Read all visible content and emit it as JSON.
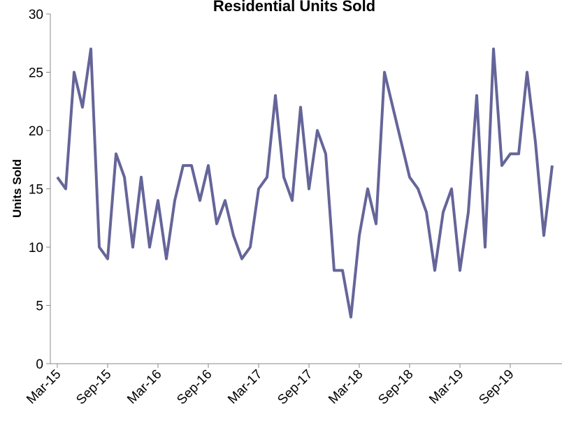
{
  "chart_data": {
    "type": "line",
    "title": "Residential Units Sold",
    "y_label": "Units Sold",
    "categories": [
      "Mar-15",
      null,
      null,
      null,
      null,
      null,
      "Sep-15",
      null,
      null,
      null,
      null,
      null,
      "Mar-16",
      null,
      null,
      null,
      null,
      null,
      "Sep-16",
      null,
      null,
      null,
      null,
      null,
      "Mar-17",
      null,
      null,
      null,
      null,
      null,
      "Sep-17",
      null,
      null,
      null,
      null,
      null,
      "Mar-18",
      null,
      null,
      null,
      null,
      null,
      "Sep-18",
      null,
      null,
      null,
      null,
      null,
      "Mar-19",
      null,
      null,
      null,
      null,
      null,
      "Sep-19",
      null,
      null,
      null,
      null,
      null
    ],
    "series": [
      {
        "name": "Units Sold",
        "color": "#65659a",
        "values": [
          16,
          15,
          25,
          22,
          27,
          10,
          9,
          18,
          16,
          10,
          16,
          10,
          14,
          9,
          14,
          17,
          17,
          14,
          17,
          12,
          14,
          11,
          9,
          10,
          15,
          16,
          23,
          16,
          14,
          22,
          15,
          20,
          18,
          8,
          8,
          4,
          11,
          15,
          12,
          25,
          22,
          19,
          16,
          15,
          13,
          8,
          13,
          15,
          8,
          13,
          23,
          10,
          27,
          17,
          18,
          18,
          25,
          19,
          11,
          17
        ]
      }
    ],
    "ylim": [
      0,
      30
    ],
    "yticks": [
      0,
      5,
      10,
      15,
      20,
      25,
      30
    ],
    "grid": false
  }
}
